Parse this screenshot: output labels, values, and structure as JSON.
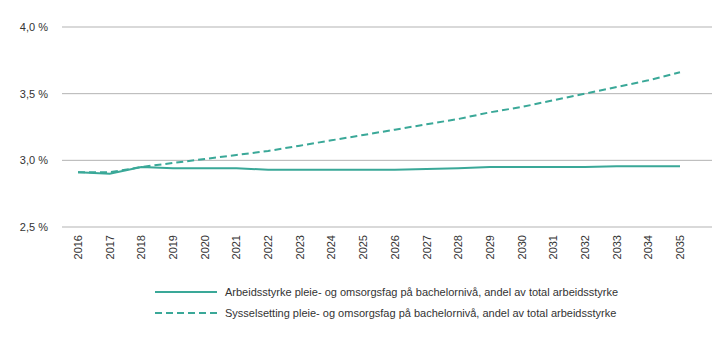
{
  "chart_data": {
    "type": "line",
    "categories": [
      "2016",
      "2017",
      "2018",
      "2019",
      "2020",
      "2021",
      "2022",
      "2023",
      "2024",
      "2025",
      "2026",
      "2027",
      "2028",
      "2029",
      "2030",
      "2031",
      "2032",
      "2033",
      "2034",
      "2035"
    ],
    "series": [
      {
        "name": "Arbeidsstyrke pleie- og omsorgsfag på bachelornivå, andel av total arbeidsstyrke",
        "color": "#3aa898",
        "line_style": "solid",
        "values": [
          2.91,
          2.9,
          2.95,
          2.94,
          2.94,
          2.94,
          2.93,
          2.93,
          2.93,
          2.93,
          2.93,
          2.935,
          2.94,
          2.95,
          2.95,
          2.95,
          2.95,
          2.955,
          2.955,
          2.955
        ]
      },
      {
        "name": "Sysselsetting pleie- og omsorgsfag på bachelornivå, andel av total arbeidsstyrke",
        "color": "#3aa898",
        "line_style": "dashed",
        "values": [
          2.91,
          2.91,
          2.95,
          2.98,
          3.01,
          3.04,
          3.07,
          3.11,
          3.15,
          3.19,
          3.23,
          3.27,
          3.31,
          3.36,
          3.4,
          3.45,
          3.5,
          3.55,
          3.6,
          3.66
        ]
      }
    ],
    "ylim": [
      2.5,
      4.0
    ],
    "yticks": [
      {
        "value": 2.5,
        "label": "2,5 %"
      },
      {
        "value": 3.0,
        "label": "3,0 %"
      },
      {
        "value": 3.5,
        "label": "3,5 %"
      },
      {
        "value": 4.0,
        "label": "4,0 %"
      }
    ],
    "grid": true,
    "legend": "bottom"
  }
}
